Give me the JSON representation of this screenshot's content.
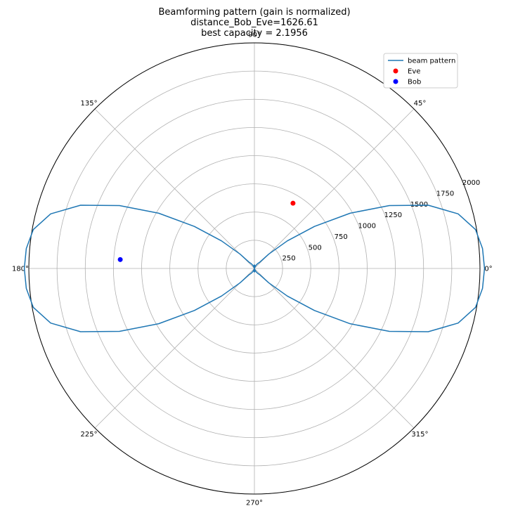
{
  "chart_data": {
    "type": "polar",
    "title_lines": [
      "Beamforming pattern (gain is normalized)",
      "distance_Bob_Eve=1626.61",
      "best capacity = 2.1956"
    ],
    "radial_ticks": [
      250,
      500,
      750,
      1000,
      1250,
      1500,
      1750,
      2000
    ],
    "radial_tick_labels": [
      "250",
      "500",
      "750",
      "1000",
      "1250",
      "1500",
      "1750",
      "2000"
    ],
    "rlim": [
      0,
      2000
    ],
    "angle_ticks": [
      0,
      45,
      90,
      135,
      180,
      225,
      270,
      315
    ],
    "angle_tick_labels": [
      "0°",
      "45°",
      "90°",
      "135°",
      "180°",
      "225°",
      "270°",
      "315°"
    ],
    "grid": true,
    "legend_position": "top-right",
    "series": [
      {
        "name": "beam pattern",
        "kind": "line",
        "color": "#1f77b4",
        "theta_deg": [
          0,
          5,
          10,
          15,
          20,
          25,
          30,
          35,
          40,
          45,
          50,
          55,
          60,
          65,
          70,
          75,
          80,
          85,
          90,
          95,
          100,
          105,
          110,
          115,
          120,
          125,
          130,
          135,
          140,
          145,
          150,
          155,
          160,
          165,
          170,
          175,
          180,
          185,
          190,
          195,
          200,
          205,
          210,
          215,
          220,
          225,
          230,
          235,
          240,
          245,
          250,
          255,
          260,
          265,
          270,
          275,
          280,
          285,
          290,
          295,
          300,
          305,
          310,
          315,
          320,
          325,
          330,
          335,
          340,
          345,
          350,
          355,
          360
        ],
        "r": [
          2040,
          2030,
          1990,
          1870,
          1640,
          1320,
          980,
          650,
          380,
          180,
          70,
          55,
          40,
          25,
          12,
          4,
          20,
          30,
          25,
          30,
          20,
          4,
          12,
          25,
          40,
          55,
          70,
          180,
          380,
          650,
          980,
          1320,
          1640,
          1870,
          1990,
          2030,
          2040,
          2030,
          1990,
          1870,
          1640,
          1320,
          980,
          650,
          380,
          180,
          70,
          55,
          40,
          25,
          12,
          4,
          20,
          30,
          25,
          30,
          20,
          4,
          12,
          25,
          40,
          55,
          70,
          180,
          380,
          650,
          980,
          1320,
          1640,
          1870,
          1990,
          2030,
          2040
        ]
      },
      {
        "name": "Eve",
        "kind": "scatter",
        "color": "#ff0000",
        "theta_deg": [
          59.4
        ],
        "r": [
          672
        ]
      },
      {
        "name": "Bob",
        "kind": "scatter",
        "color": "#0000ff",
        "theta_deg": [
          176.2
        ],
        "r": [
          1192
        ]
      }
    ]
  }
}
